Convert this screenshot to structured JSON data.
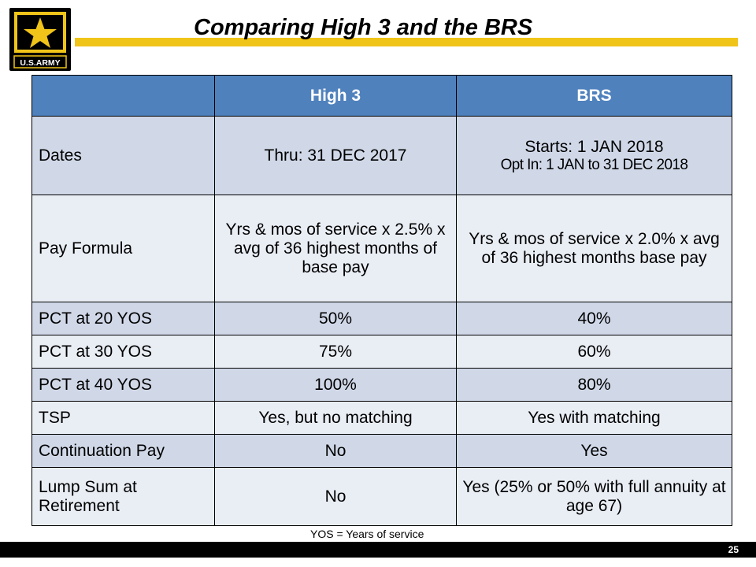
{
  "title": "Comparing High 3 and the BRS",
  "logo": {
    "text": "U.S.ARMY"
  },
  "table": {
    "headers": [
      "",
      "High 3",
      "BRS"
    ],
    "rows": [
      {
        "label": "Dates",
        "high3": [
          "Thru: 31 DEC 2017"
        ],
        "brs": [
          "Starts: 1 JAN 2018",
          "Opt In: 1 JAN to 31 DEC 2018"
        ]
      },
      {
        "label": "Pay Formula",
        "high3": "Yrs & mos of service x 2.5% x avg of 36 highest months of base pay",
        "brs": "Yrs & mos of service x 2.0% x avg of 36 highest months base pay"
      },
      {
        "label": "PCT at 20 YOS",
        "high3": "50%",
        "brs": "40%"
      },
      {
        "label": "PCT at 30 YOS",
        "high3": "75%",
        "brs": "60%"
      },
      {
        "label": "PCT at 40 YOS",
        "high3": "100%",
        "brs": "80%"
      },
      {
        "label": "TSP",
        "high3": "Yes, but no matching",
        "brs": "Yes with matching"
      },
      {
        "label": "Continuation Pay",
        "high3": "No",
        "brs": "Yes"
      },
      {
        "label": "Lump Sum at Retirement",
        "high3": "No",
        "brs": "Yes (25% or 50% with full annuity at age 67)"
      }
    ]
  },
  "footnote": "YOS = Years of service",
  "page_number": "25",
  "colors": {
    "header_blue": "#4f81bd",
    "row_dark": "#d0d8e8",
    "row_light": "#e9edf4",
    "gold": "#f0c419"
  }
}
